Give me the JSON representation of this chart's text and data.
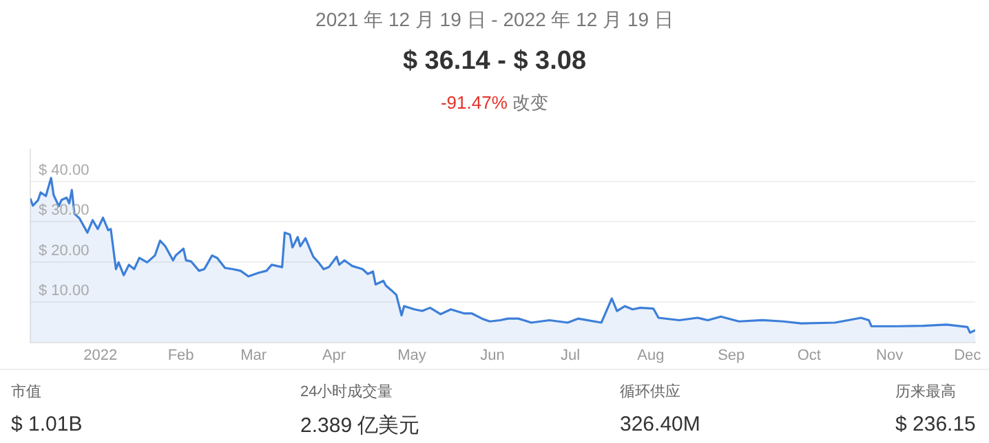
{
  "chart_data": {
    "type": "area",
    "title": "2021 年 12 月 19 日 - 2022 年 12 月 19 日",
    "subtitle": "$ 36.14 - $ 3.08",
    "annotations": [
      "-91.47%",
      "改变",
      "市值",
      "$ 1.01B",
      "24小时成交量",
      "2.389 亿美元",
      "循环供应",
      "326.40M",
      "历来最高",
      "$ 236.15"
    ],
    "x": [
      "2021-12-05",
      "2021-12-06",
      "2021-12-08",
      "2021-12-09",
      "2021-12-11",
      "2021-12-13",
      "2021-12-14",
      "2021-12-16",
      "2021-12-17",
      "2021-12-19",
      "2021-12-20",
      "2021-12-21",
      "2021-12-22",
      "2021-12-24",
      "2021-12-27",
      "2021-12-29",
      "2021-12-31",
      "2022-01-02",
      "2022-01-04",
      "2022-01-05",
      "2022-01-07",
      "2022-01-08",
      "2022-01-10",
      "2022-01-12",
      "2022-01-14",
      "2022-01-16",
      "2022-01-19",
      "2022-01-22",
      "2022-01-24",
      "2022-01-26",
      "2022-01-29",
      "2022-01-30",
      "2022-02-02",
      "2022-02-03",
      "2022-02-05",
      "2022-02-08",
      "2022-02-10",
      "2022-02-11",
      "2022-02-13",
      "2022-02-15",
      "2022-02-18",
      "2022-02-21",
      "2022-02-24",
      "2022-02-27",
      "2022-03-03",
      "2022-03-06",
      "2022-03-08",
      "2022-03-12",
      "2022-03-13",
      "2022-03-15",
      "2022-03-16",
      "2022-03-18",
      "2022-03-19",
      "2022-03-21",
      "2022-03-23",
      "2022-03-24",
      "2022-03-26",
      "2022-03-28",
      "2022-03-30",
      "2022-04-02",
      "2022-04-03",
      "2022-04-05",
      "2022-04-08",
      "2022-04-12",
      "2022-04-14",
      "2022-04-16",
      "2022-04-17",
      "2022-04-20",
      "2022-04-21",
      "2022-04-23",
      "2022-04-25",
      "2022-04-27",
      "2022-04-28",
      "2022-05-02",
      "2022-05-05",
      "2022-05-08",
      "2022-05-12",
      "2022-05-16",
      "2022-05-21",
      "2022-05-24",
      "2022-05-28",
      "2022-05-31",
      "2022-06-04",
      "2022-06-07",
      "2022-06-11",
      "2022-06-16",
      "2022-06-23",
      "2022-06-30",
      "2022-07-04",
      "2022-07-13",
      "2022-07-17",
      "2022-07-19",
      "2022-07-22",
      "2022-07-25",
      "2022-07-28",
      "2022-08-02",
      "2022-08-04",
      "2022-08-12",
      "2022-08-19",
      "2022-08-23",
      "2022-08-28",
      "2022-09-04",
      "2022-09-13",
      "2022-09-21",
      "2022-09-28",
      "2022-10-11",
      "2022-10-16",
      "2022-10-21",
      "2022-10-24",
      "2022-10-25",
      "2022-11-04",
      "2022-11-14",
      "2022-11-23",
      "2022-12-01",
      "2022-12-02",
      "2022-12-04"
    ],
    "series": [
      {
        "color": "#3d7fd9",
        "values": [
          35.8,
          34.0,
          35.4,
          37.3,
          36.4,
          40.9,
          36.6,
          33.9,
          35.4,
          36.0,
          34.6,
          37.9,
          32.0,
          30.8,
          27.3,
          30.4,
          28.2,
          31.0,
          27.9,
          28.2,
          18.2,
          19.9,
          16.7,
          19.3,
          18.2,
          21.0,
          19.9,
          21.6,
          25.3,
          23.9,
          20.4,
          21.6,
          23.3,
          20.4,
          20.1,
          17.8,
          18.2,
          19.3,
          21.6,
          21.0,
          18.5,
          18.2,
          17.8,
          16.4,
          17.3,
          17.8,
          19.3,
          18.7,
          27.3,
          26.8,
          23.6,
          26.2,
          23.9,
          25.9,
          22.8,
          21.3,
          19.9,
          18.2,
          18.7,
          21.3,
          19.3,
          20.4,
          19.0,
          18.2,
          17.0,
          17.6,
          14.4,
          15.3,
          14.1,
          13.0,
          11.8,
          6.7,
          9.0,
          8.2,
          7.8,
          8.6,
          7.0,
          8.2,
          7.2,
          7.2,
          5.9,
          5.2,
          5.5,
          5.9,
          5.9,
          4.9,
          5.5,
          4.9,
          5.9,
          4.9,
          10.9,
          7.8,
          9.0,
          8.2,
          8.6,
          8.4,
          6.1,
          5.5,
          6.1,
          5.5,
          6.4,
          5.2,
          5.5,
          5.2,
          4.7,
          4.9,
          5.5,
          6.1,
          5.5,
          4.0,
          4.0,
          4.1,
          4.4,
          3.8,
          2.4,
          3.0
        ]
      }
    ],
    "xlim": [
      "2021-12-05",
      "2022-12-04"
    ],
    "xticks": [
      {
        "value": "2022-01-01",
        "label": "2022"
      },
      {
        "value": "2022-02-01",
        "label": "Feb"
      },
      {
        "value": "2022-03-01",
        "label": "Mar"
      },
      {
        "value": "2022-04-01",
        "label": "Apr"
      },
      {
        "value": "2022-05-01",
        "label": "May"
      },
      {
        "value": "2022-06-01",
        "label": "Jun"
      },
      {
        "value": "2022-07-01",
        "label": "Jul"
      },
      {
        "value": "2022-08-01",
        "label": "Aug"
      },
      {
        "value": "2022-09-01",
        "label": "Sep"
      },
      {
        "value": "2022-10-01",
        "label": "Oct"
      },
      {
        "value": "2022-11-01",
        "label": "Nov"
      },
      {
        "value": "2022-12-01",
        "label": "Dec"
      }
    ],
    "ylim": [
      0,
      48
    ],
    "yticks": [
      {
        "value": 10,
        "label": "$ 10.00"
      },
      {
        "value": 20,
        "label": "$ 20.00"
      },
      {
        "value": 30,
        "label": "$ 30.00"
      },
      {
        "value": 40,
        "label": "$ 40.00"
      }
    ],
    "grid": "y",
    "legend": false,
    "marker": "none",
    "line_style": "solid"
  }
}
